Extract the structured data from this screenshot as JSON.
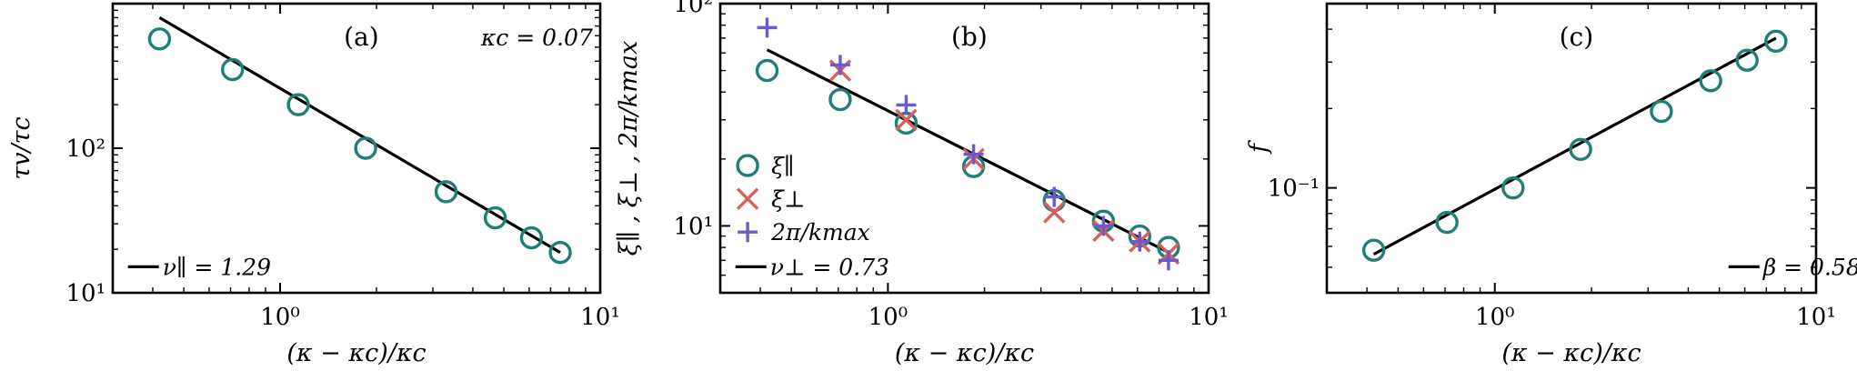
{
  "chart_data": [
    {
      "type": "scatter",
      "panel_label": "(a)",
      "annotation": "κc = 0.07",
      "xlabel": "(κ − κc)/κc",
      "ylabel": "τv/τc",
      "xscale": "log",
      "yscale": "log",
      "xlim": [
        0.3,
        10
      ],
      "ylim": [
        10,
        1000
      ],
      "xticks": [
        {
          "v": 1,
          "label": "10⁰"
        },
        {
          "v": 10,
          "label": "10¹"
        }
      ],
      "yticks": [
        {
          "v": 10,
          "label": "10¹"
        },
        {
          "v": 100,
          "label": "10²"
        }
      ],
      "series": [
        {
          "name": "τv/τc",
          "marker": "circle",
          "color": "#1f7f78",
          "x": [
            0.42,
            0.71,
            1.14,
            1.85,
            3.3,
            4.7,
            6.1,
            7.5
          ],
          "y": [
            570,
            350,
            200,
            100,
            50,
            33,
            24,
            19
          ]
        }
      ],
      "fit": {
        "label": "ν∥ = 1.29",
        "x": [
          0.42,
          7.5
        ],
        "y": [
          800,
          19
        ]
      }
    },
    {
      "type": "scatter",
      "panel_label": "(b)",
      "xlabel": "(κ − κc)/κc",
      "ylabel": "ξ∥ ,  ξ⊥ ,  2π/kmax",
      "xscale": "log",
      "yscale": "log",
      "xlim": [
        0.3,
        10
      ],
      "ylim": [
        5,
        100
      ],
      "xticks": [
        {
          "v": 1,
          "label": "10⁰"
        },
        {
          "v": 10,
          "label": "10¹"
        }
      ],
      "yticks": [
        {
          "v": 10,
          "label": "10¹"
        },
        {
          "v": 100,
          "label": "10²"
        }
      ],
      "series": [
        {
          "name": "ξ∥",
          "marker": "circle",
          "color": "#1f7f78",
          "x": [
            0.42,
            0.71,
            1.14,
            1.85,
            3.3,
            4.7,
            6.1,
            7.5
          ],
          "y": [
            50,
            37,
            29,
            18.5,
            13,
            10.5,
            9,
            8
          ]
        },
        {
          "name": "ξ⊥",
          "marker": "x",
          "color": "#d95f5b",
          "x": [
            0.71,
            1.14,
            1.85,
            3.3,
            4.7,
            6.1,
            7.5
          ],
          "y": [
            50,
            30,
            20,
            11.5,
            9.5,
            8.5,
            7.5
          ]
        },
        {
          "name": "2π/kmax",
          "marker": "plus",
          "color": "#6a5acd",
          "x": [
            0.42,
            0.71,
            1.14,
            1.85,
            3.3,
            4.7,
            6.1,
            7.5
          ],
          "y": [
            78,
            53,
            35,
            21,
            13.5,
            10,
            8.5,
            7
          ]
        }
      ],
      "fit": {
        "label": "ν⊥ = 0.73",
        "x": [
          0.42,
          7.5
        ],
        "y": [
          62,
          7.6
        ]
      }
    },
    {
      "type": "scatter",
      "panel_label": "(c)",
      "xlabel": "(κ − κc)/κc",
      "ylabel": "f",
      "xscale": "log",
      "yscale": "log",
      "xlim": [
        0.3,
        10
      ],
      "ylim": [
        0.04,
        0.5
      ],
      "xticks": [
        {
          "v": 1,
          "label": "10⁰"
        },
        {
          "v": 10,
          "label": "10¹"
        }
      ],
      "yticks": [
        {
          "v": 0.1,
          "label": "10⁻¹"
        }
      ],
      "series": [
        {
          "name": "f",
          "marker": "circle",
          "color": "#1f7f78",
          "x": [
            0.42,
            0.71,
            1.14,
            1.85,
            3.3,
            4.7,
            6.1,
            7.5
          ],
          "y": [
            0.058,
            0.074,
            0.1,
            0.14,
            0.195,
            0.255,
            0.305,
            0.36
          ]
        }
      ],
      "fit": {
        "label": "β = 0.58",
        "x": [
          0.42,
          7.5
        ],
        "y": [
          0.056,
          0.37
        ]
      }
    }
  ]
}
